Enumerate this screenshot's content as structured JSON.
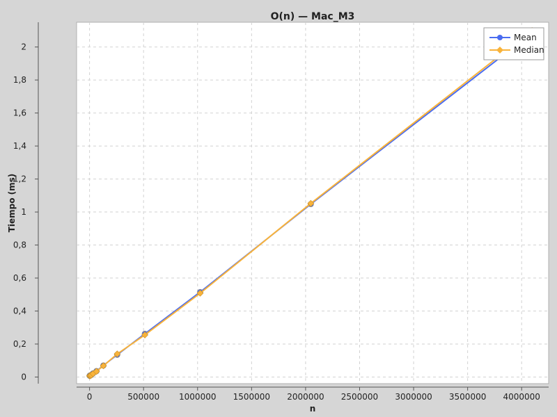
{
  "chart_data": {
    "type": "line",
    "title": "O(n) — Mac_M3",
    "xlabel": "n",
    "ylabel": "Tiempo (ms)",
    "xlim": [
      -120000,
      4250000
    ],
    "ylim": [
      -0.04,
      2.15
    ],
    "xticks": [
      0,
      500000,
      1000000,
      1500000,
      2000000,
      2500000,
      3000000,
      3500000,
      4000000
    ],
    "xtick_labels": [
      "0",
      "500000",
      "1000000",
      "1500000",
      "2000000",
      "2500000",
      "3000000",
      "3500000",
      "4000000"
    ],
    "yticks": [
      0,
      0.2,
      0.4,
      0.6,
      0.8,
      1,
      1.2,
      1.4,
      1.6,
      1.8,
      2
    ],
    "ytick_labels": [
      "0",
      "0,2",
      "0,4",
      "0,6",
      "0,8",
      "1",
      "1,2",
      "1,4",
      "1,6",
      "1,8",
      "2"
    ],
    "grid": true,
    "legend_position": "top-right",
    "x": [
      1000,
      2000,
      4000,
      8000,
      16000,
      32000,
      64000,
      128000,
      256000,
      512000,
      1024000,
      2048000,
      4096000
    ],
    "series": [
      {
        "name": "Mean",
        "color": "#4a6cf0",
        "marker": "circle",
        "values": [
          0.008,
          0.008,
          0.009,
          0.01,
          0.013,
          0.022,
          0.036,
          0.07,
          0.135,
          0.262,
          0.515,
          1.048,
          2.085
        ]
      },
      {
        "name": "Median",
        "color": "#f9b33a",
        "marker": "diamond",
        "values": [
          0.007,
          0.007,
          0.008,
          0.009,
          0.012,
          0.02,
          0.034,
          0.068,
          0.14,
          0.255,
          0.508,
          1.052,
          2.1
        ]
      }
    ]
  }
}
